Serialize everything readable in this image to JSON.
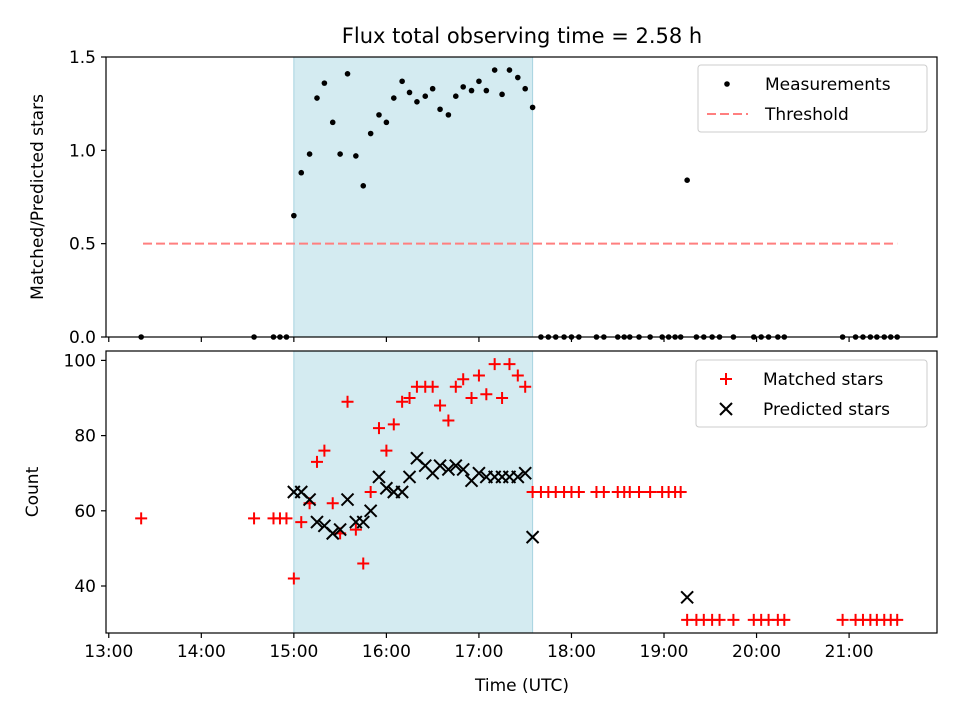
{
  "figure": {
    "title": "Flux total observing time = 2.58 h",
    "xlabel": "Time (UTC)",
    "x_ticks": [
      "13:00",
      "14:00",
      "15:00",
      "16:00",
      "17:00",
      "18:00",
      "19:00",
      "20:00",
      "21:00"
    ],
    "colors": {
      "measurements": "#000000",
      "threshold": "#ff7f7f",
      "matched": "#ff0000",
      "predicted": "#000000",
      "shade": "#d4ebf1",
      "shade_edge": "#a8d4e0"
    }
  },
  "chart_data": [
    {
      "type": "scatter",
      "title": "Flux total observing time = 2.58 h",
      "xlabel": "",
      "ylabel": "Matched/Predicted stars",
      "ylim": [
        0,
        1.5
      ],
      "y_ticks": [
        "0.0",
        "0.5",
        "1.0",
        "1.5"
      ],
      "xlim_hours": [
        12.97,
        21.95
      ],
      "shaded_span_hours": [
        15.0,
        17.58
      ],
      "legend": {
        "placement": "top-right",
        "entries": [
          "Measurements",
          "Threshold"
        ]
      },
      "threshold": {
        "name": "Threshold",
        "value": 0.5,
        "x_range_hours": [
          13.37,
          21.52
        ]
      },
      "series": [
        {
          "name": "Measurements",
          "marker": "dot",
          "x_hours": [
            13.35,
            14.57,
            14.78,
            14.85,
            14.92,
            15.0,
            15.08,
            15.17,
            15.25,
            15.33,
            15.42,
            15.5,
            15.58,
            15.67,
            15.75,
            15.83,
            15.92,
            16.0,
            16.08,
            16.17,
            16.25,
            16.33,
            16.42,
            16.5,
            16.58,
            16.67,
            16.75,
            16.83,
            16.92,
            17.0,
            17.08,
            17.17,
            17.25,
            17.33,
            17.42,
            17.5,
            17.58,
            17.67,
            17.75,
            17.83,
            17.92,
            18.0,
            18.08,
            18.27,
            18.35,
            18.5,
            18.57,
            18.63,
            18.73,
            18.85,
            18.98,
            19.05,
            19.12,
            19.18,
            19.25,
            19.35,
            19.43,
            19.52,
            19.6,
            19.75,
            19.97,
            20.05,
            20.13,
            20.23,
            20.3,
            20.93,
            21.07,
            21.15,
            21.23,
            21.3,
            21.38,
            21.45,
            21.52
          ],
          "y": [
            0.0,
            0.0,
            0.0,
            0.0,
            0.0,
            0.65,
            0.88,
            0.98,
            1.28,
            1.36,
            1.15,
            0.98,
            1.41,
            0.97,
            0.81,
            1.09,
            1.19,
            1.15,
            1.28,
            1.37,
            1.31,
            1.26,
            1.29,
            1.33,
            1.22,
            1.19,
            1.29,
            1.34,
            1.32,
            1.37,
            1.32,
            1.43,
            1.3,
            1.43,
            1.39,
            1.33,
            1.23,
            0.0,
            0.0,
            0.0,
            0.0,
            0.0,
            0.0,
            0.0,
            0.0,
            0.0,
            0.0,
            0.0,
            0.0,
            0.0,
            0.0,
            0.0,
            0.0,
            0.0,
            0.84,
            0.0,
            0.0,
            0.0,
            0.0,
            0.0,
            0.0,
            0.0,
            0.0,
            0.0,
            0.0,
            0.0,
            0.0,
            0.0,
            0.0,
            0.0,
            0.0,
            0.0,
            0.0
          ]
        }
      ]
    },
    {
      "type": "scatter",
      "title": "",
      "xlabel": "Time (UTC)",
      "ylabel": "Count",
      "ylim": [
        27.5,
        102.5
      ],
      "y_ticks": [
        "40",
        "60",
        "80",
        "100"
      ],
      "xlim_hours": [
        12.97,
        21.95
      ],
      "shaded_span_hours": [
        15.0,
        17.58
      ],
      "legend": {
        "placement": "top-right",
        "entries": [
          "Matched stars",
          "Predicted stars"
        ]
      },
      "series": [
        {
          "name": "Matched stars",
          "marker": "plus",
          "x_hours": [
            13.35,
            14.57,
            14.78,
            14.85,
            14.92,
            15.0,
            15.08,
            15.17,
            15.25,
            15.33,
            15.42,
            15.5,
            15.58,
            15.67,
            15.75,
            15.83,
            15.92,
            16.0,
            16.08,
            16.17,
            16.25,
            16.33,
            16.42,
            16.5,
            16.58,
            16.67,
            16.75,
            16.83,
            16.92,
            17.0,
            17.08,
            17.17,
            17.25,
            17.33,
            17.42,
            17.5,
            17.58,
            17.67,
            17.75,
            17.83,
            17.92,
            18.0,
            18.08,
            18.27,
            18.35,
            18.5,
            18.57,
            18.63,
            18.73,
            18.85,
            18.98,
            19.05,
            19.12,
            19.18,
            19.25,
            19.35,
            19.43,
            19.52,
            19.6,
            19.75,
            19.97,
            20.05,
            20.13,
            20.23,
            20.3,
            20.93,
            21.07,
            21.15,
            21.23,
            21.3,
            21.38,
            21.45,
            21.52
          ],
          "y": [
            58,
            58,
            58,
            58,
            58,
            42,
            57,
            62,
            73,
            76,
            62,
            54,
            89,
            55,
            46,
            65,
            82,
            76,
            83,
            89,
            90,
            93,
            93,
            93,
            88,
            84,
            93,
            95,
            90,
            96,
            91,
            99,
            90,
            99,
            96,
            93,
            65,
            65,
            65,
            65,
            65,
            65,
            65,
            65,
            65,
            65,
            65,
            65,
            65,
            65,
            65,
            65,
            65,
            65,
            31,
            31,
            31,
            31,
            31,
            31,
            31,
            31,
            31,
            31,
            31,
            31,
            31,
            31,
            31,
            31,
            31,
            31,
            31
          ]
        },
        {
          "name": "Predicted stars",
          "marker": "x",
          "x_hours": [
            15.0,
            15.08,
            15.17,
            15.25,
            15.33,
            15.42,
            15.5,
            15.58,
            15.67,
            15.75,
            15.83,
            15.92,
            16.0,
            16.08,
            16.17,
            16.25,
            16.33,
            16.42,
            16.5,
            16.58,
            16.67,
            16.75,
            16.83,
            16.92,
            17.0,
            17.08,
            17.17,
            17.25,
            17.33,
            17.42,
            17.5,
            17.58,
            19.25
          ],
          "y": [
            65,
            65,
            63,
            57,
            56,
            54,
            55,
            63,
            57,
            57,
            60,
            69,
            66,
            65,
            65,
            69,
            74,
            72,
            70,
            72,
            71,
            72,
            71,
            68,
            70,
            69,
            69,
            69,
            69,
            69,
            70,
            53,
            37
          ]
        }
      ]
    }
  ]
}
